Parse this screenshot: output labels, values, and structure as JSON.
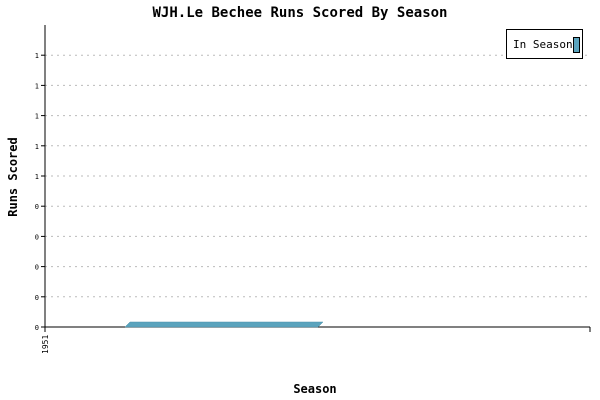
{
  "chart_data": {
    "type": "area",
    "title": "WJH.Le Bechee Runs Scored By Season",
    "xlabel": "Season",
    "ylabel": "Runs Scored",
    "x_tick_labels": [
      "1951"
    ],
    "y_tick_labels": [
      "0",
      "0",
      "0",
      "0",
      "0",
      "1",
      "1",
      "1",
      "1",
      "1"
    ],
    "x": [
      "1951"
    ],
    "series": [
      {
        "name": "In Season",
        "values": [
          0
        ]
      }
    ],
    "grid": true,
    "legend_position": "top-right",
    "colors": {
      "series": "#5aa3bd",
      "series_edge": "#4a8fa8",
      "grid": "#bbbbbb",
      "axis": "#000000"
    }
  }
}
